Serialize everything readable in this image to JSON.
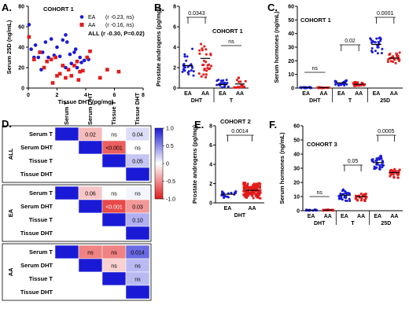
{
  "chart_data": [
    {
      "panel": "A",
      "type": "scatter",
      "title": "COHORT 1",
      "xlabel": "Tissue DHT (pg/mg)",
      "ylabel": "Serum 25D (ng/mL)",
      "xlim": [
        0,
        8
      ],
      "ylim": [
        0,
        80
      ],
      "xticks": [
        0,
        2,
        4,
        6,
        8
      ],
      "yticks": [
        0,
        20,
        40,
        60,
        80
      ],
      "legend": [
        {
          "group": "EA",
          "stat": "(r -0.23, ns)",
          "color": "#1a1ad6"
        },
        {
          "group": "AA",
          "stat": "(r -0.16, ns)",
          "color": "#e21b1b"
        }
      ],
      "annotation": "ALL (r -0.30, P=0.02)",
      "series": [
        {
          "name": "EA",
          "color": "#1a1ad6",
          "points": [
            [
              0.05,
              62
            ],
            [
              0.2,
              38
            ],
            [
              0.4,
              30
            ],
            [
              0.7,
              30
            ],
            [
              0.5,
              42
            ],
            [
              1.0,
              35
            ],
            [
              1.4,
              30
            ],
            [
              1.6,
              48
            ],
            [
              1.8,
              32
            ],
            [
              2.0,
              40
            ],
            [
              2.2,
              31
            ],
            [
              2.4,
              47
            ],
            [
              2.6,
              52
            ],
            [
              2.7,
              45
            ],
            [
              2.9,
              33
            ],
            [
              3.0,
              24
            ],
            [
              3.3,
              38
            ],
            [
              3.4,
              20
            ],
            [
              3.6,
              30
            ],
            [
              3.7,
              25
            ],
            [
              3.9,
              27
            ],
            [
              4.2,
              28
            ],
            [
              0.9,
              18
            ],
            [
              2.6,
              20
            ],
            [
              1.2,
              45
            ],
            [
              3.2,
              35
            ]
          ]
        },
        {
          "name": "AA",
          "color": "#e21b1b",
          "points": [
            [
              0.05,
              50
            ],
            [
              0.4,
              28
            ],
            [
              0.8,
              35
            ],
            [
              1.1,
              20
            ],
            [
              1.3,
              26
            ],
            [
              1.6,
              28
            ],
            [
              1.9,
              30
            ],
            [
              2.0,
              12
            ],
            [
              2.4,
              22
            ],
            [
              2.6,
              10
            ],
            [
              2.8,
              18
            ],
            [
              3.0,
              12
            ],
            [
              3.2,
              22
            ],
            [
              3.4,
              26
            ],
            [
              3.6,
              16
            ],
            [
              3.8,
              17
            ],
            [
              4.1,
              30
            ],
            [
              4.3,
              36
            ],
            [
              5.0,
              10
            ],
            [
              5.5,
              18
            ],
            [
              6.3,
              16
            ],
            [
              1.7,
              5
            ],
            [
              3.5,
              8
            ],
            [
              2.2,
              14
            ]
          ]
        }
      ]
    },
    {
      "panel": "B",
      "type": "scatter",
      "title": "COHORT 1",
      "ylabel": "Prostate androgens (pg/mg)",
      "ylim": [
        0,
        8
      ],
      "yticks": [
        0,
        2,
        4,
        6,
        8
      ],
      "groups": [
        "EA",
        "AA",
        "EA",
        "AA"
      ],
      "group_labels": [
        "DHT",
        "T"
      ],
      "brackets": [
        "0.0343",
        "ns"
      ],
      "means": [
        2.2,
        2.9,
        0.35,
        0.4
      ]
    },
    {
      "panel": "C",
      "type": "scatter",
      "title": "COHORT 1",
      "ylabel": "Serum hormones (ng/mL)",
      "ylim": [
        0,
        60
      ],
      "yticks": [
        0,
        10,
        20,
        30,
        40,
        50,
        60
      ],
      "groups": [
        "EA",
        "AA",
        "EA",
        "AA",
        "EA",
        "AA"
      ],
      "group_labels": [
        "DHT",
        "T",
        "25D"
      ],
      "brackets": [
        "ns",
        "0.02",
        "0.0001"
      ],
      "means": [
        0.3,
        0.3,
        3.8,
        2.8,
        32,
        22
      ]
    },
    {
      "panel": "D",
      "type": "heatmap",
      "columns": [
        "Serum T",
        "Serum DHT",
        "Tissue T",
        "Tissue DHT"
      ],
      "colorbar": {
        "min": -1.0,
        "max": 1.0,
        "ticks": [
          "1.0",
          "0.5",
          "0",
          "-0.5",
          "-1.0"
        ]
      },
      "blocks": [
        {
          "label": "ALL",
          "rows": [
            "Serum T",
            "Serum DHT",
            "Tissue T",
            "Tissue DHT"
          ],
          "cells": [
            [
              1.0,
              -0.3,
              0.0,
              0.15
            ],
            [
              null,
              1.0,
              -0.7,
              0.0
            ],
            [
              null,
              null,
              1.0,
              0.25
            ],
            [
              null,
              null,
              null,
              1.0
            ]
          ],
          "text": [
            [
              "",
              "0.02",
              "ns",
              "0.04"
            ],
            [
              "",
              "",
              "<0.001",
              "ns"
            ],
            [
              "",
              "",
              "",
              "0.05"
            ],
            [
              "",
              "",
              "",
              ""
            ]
          ]
        },
        {
          "label": "EA",
          "rows": [
            "Serum T",
            "Serum DHT",
            "Tissue T",
            "Tissue DHT"
          ],
          "cells": [
            [
              1.0,
              -0.25,
              0.0,
              0.05
            ],
            [
              null,
              1.0,
              -0.8,
              -0.45
            ],
            [
              null,
              null,
              1.0,
              0.35
            ],
            [
              null,
              null,
              null,
              1.0
            ]
          ],
          "text": [
            [
              "",
              "0.06",
              "ns",
              "ns"
            ],
            [
              "",
              "",
              "<0.001",
              "0.03"
            ],
            [
              "",
              "",
              "",
              "0.10"
            ],
            [
              "",
              "",
              "",
              ""
            ]
          ]
        },
        {
          "label": "AA",
          "rows": [
            "Serum T",
            "Serum DHT",
            "Tissue T",
            "Tissue DHT"
          ],
          "cells": [
            [
              1.0,
              -0.55,
              -0.55,
              0.65
            ],
            [
              null,
              1.0,
              -0.2,
              0.3
            ],
            [
              null,
              null,
              1.0,
              0.3
            ],
            [
              null,
              null,
              null,
              1.0
            ]
          ],
          "text": [
            [
              "",
              "ns",
              "ns",
              "0.014"
            ],
            [
              "",
              "",
              "ns",
              "ns"
            ],
            [
              "",
              "",
              "",
              "ns"
            ],
            [
              "",
              "",
              "",
              ""
            ]
          ]
        }
      ]
    },
    {
      "panel": "E",
      "type": "scatter",
      "title": "COHORT 2",
      "ylabel": "Prostate androgens (pg/mg)",
      "ylim": [
        0,
        8
      ],
      "yticks": [
        0,
        2,
        4,
        6,
        8
      ],
      "groups": [
        "EA",
        "AA"
      ],
      "group_labels": [
        "DHT"
      ],
      "brackets": [
        "0.0014"
      ],
      "means": [
        0.9,
        1.3
      ]
    },
    {
      "panel": "F",
      "type": "scatter",
      "title": "COHORT 3",
      "ylabel": "Serum hormones (ng/mL)",
      "ylim": [
        0,
        60
      ],
      "yticks": [
        0,
        10,
        20,
        30,
        40,
        50,
        60
      ],
      "groups": [
        "EA",
        "AA",
        "EA",
        "AA",
        "EA",
        "AA"
      ],
      "group_labels": [
        "DHT",
        "T",
        "25D"
      ],
      "brackets": [
        "ns",
        "0.05",
        "0.0005"
      ],
      "means": [
        0.4,
        0.4,
        11,
        10,
        34,
        27
      ]
    }
  ],
  "colors": {
    "ea": "#1a1ad6",
    "aa": "#e21b1b",
    "heat_pos": "#1a1ad6",
    "heat_neg": "#e21b1b"
  }
}
